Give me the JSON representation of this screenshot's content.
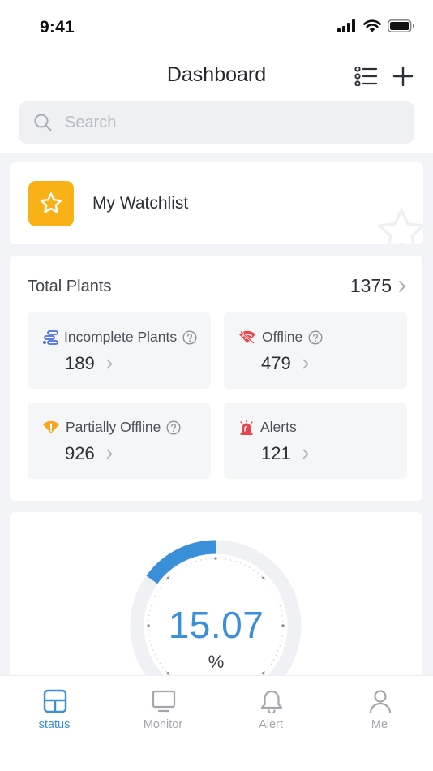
{
  "status_bar": {
    "time": "9:41"
  },
  "header": {
    "title": "Dashboard"
  },
  "search": {
    "placeholder": "Search"
  },
  "watchlist": {
    "label": "My Watchlist"
  },
  "total_plants": {
    "label": "Total Plants",
    "count": "1375",
    "tiles": [
      {
        "label": "Incomplete Plants",
        "value": "189",
        "icon": "incomplete-plants-icon",
        "color": "#4a6fe3"
      },
      {
        "label": "Offline",
        "value": "479",
        "icon": "offline-wifi-icon",
        "color": "#e5474d"
      },
      {
        "label": "Partially Offline",
        "value": "926",
        "icon": "partial-offline-warning-icon",
        "color": "#f5a623"
      },
      {
        "label": "Alerts",
        "value": "121",
        "icon": "alarm-siren-icon",
        "color": "#e5474d"
      }
    ]
  },
  "gauge": {
    "value": "15.07",
    "unit": "%",
    "level_percent": 15.07,
    "color": "#3a8fd9"
  },
  "tabs": [
    {
      "label": "status",
      "icon": "status-grid-icon",
      "active": true
    },
    {
      "label": "Monitor",
      "icon": "monitor-icon",
      "active": false
    },
    {
      "label": "Alert",
      "icon": "bell-icon",
      "active": false
    },
    {
      "label": "Me",
      "icon": "person-icon",
      "active": false
    }
  ],
  "colors": {
    "accent": "#3a8fd9",
    "watchlist_badge": "#f8b218",
    "background": "#f2f3f6"
  }
}
